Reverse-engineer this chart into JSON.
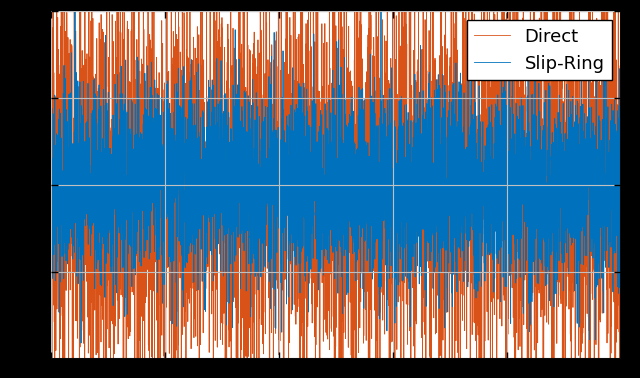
{
  "title": "",
  "xlabel": "",
  "ylabel": "",
  "legend": [
    "Direct",
    "Slip-Ring"
  ],
  "color_direct": "#0072BD",
  "color_slipring": "#D95319",
  "n_points": 5000,
  "seed_direct": 42,
  "seed_slipring": 123,
  "amplitude_direct": 0.28,
  "amplitude_slipring": 0.55,
  "ylim": [
    -1.0,
    1.0
  ],
  "xlim": [
    0,
    5000
  ],
  "grid_color": "#c0c0c0",
  "linewidth_direct": 0.6,
  "linewidth_slipring": 0.6,
  "background_color": "#ffffff",
  "legend_fontsize": 13,
  "n_xticks": 6,
  "n_yticks": 5,
  "spine_linewidth": 1.5,
  "fig_facecolor": "#000000"
}
